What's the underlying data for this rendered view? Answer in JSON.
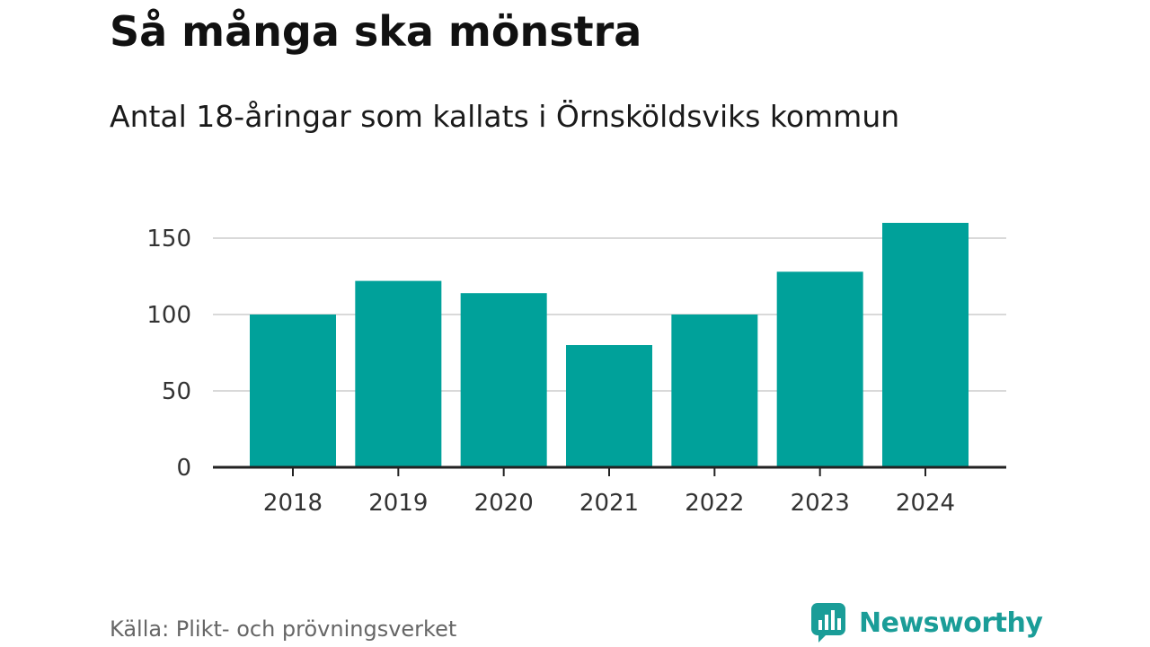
{
  "header": {
    "title": "Så många ska mönstra",
    "subtitle": "Antal 18-åringar som kallats i Örnsköldsviks kommun"
  },
  "footer": {
    "source": "Källa: Plikt- och prövningsverket",
    "brand_name": "Newsworthy"
  },
  "colors": {
    "bar": "#00a19a",
    "grid": "#d9d9d9",
    "axis": "#222222",
    "brand": "#1a9d98"
  },
  "icons": {
    "brand_logo": "newsworthy-logo-icon"
  },
  "chart_data": {
    "type": "bar",
    "title": "",
    "xlabel": "",
    "ylabel": "",
    "categories": [
      "2018",
      "2019",
      "2020",
      "2021",
      "2022",
      "2023",
      "2024"
    ],
    "values": [
      100,
      122,
      114,
      80,
      100,
      128,
      160
    ],
    "ylim": [
      0,
      160
    ],
    "yticks": [
      0,
      50,
      100,
      150
    ],
    "grid": true,
    "legend": "none"
  }
}
